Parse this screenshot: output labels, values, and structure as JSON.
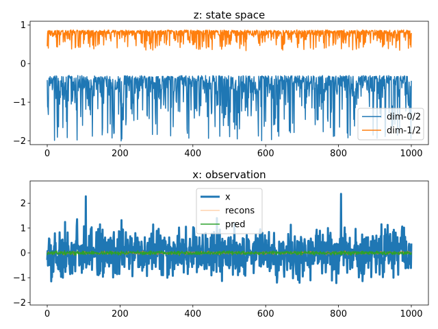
{
  "chart_data": [
    {
      "type": "line",
      "title": "z: state space",
      "xlim": [
        -47,
        1047
      ],
      "ylim": [
        -2.1,
        1.1
      ],
      "xticks": [
        0,
        200,
        400,
        600,
        800,
        1000
      ],
      "yticks": [
        -2,
        -1,
        0,
        1
      ],
      "legend": "lower right",
      "series": [
        {
          "name": "dim-0/2",
          "color": "#1f77b4",
          "linewidth": 1.5,
          "signal": {
            "base": -0.32,
            "low": -2.0,
            "mode": "spiky-down",
            "seed": 11
          }
        },
        {
          "name": "dim-1/2",
          "color": "#ff7f0e",
          "linewidth": 1.5,
          "signal": {
            "base": 0.86,
            "low": 0.35,
            "mode": "spiky-down",
            "seed": 29
          }
        }
      ]
    },
    {
      "type": "line",
      "title": "x: observation",
      "xlim": [
        -47,
        1047
      ],
      "ylim": [
        -2.1,
        2.9
      ],
      "xticks": [
        0,
        200,
        400,
        600,
        800,
        1000
      ],
      "yticks": [
        -2,
        -1,
        0,
        1,
        2
      ],
      "legend": "upper center",
      "series": [
        {
          "name": "x",
          "color": "#1f77b4",
          "linewidth": 3,
          "signal": {
            "center": 0.0,
            "amp": 0.55,
            "max": 2.7,
            "min": -1.9,
            "mode": "noise",
            "seed": 5
          }
        },
        {
          "name": "recons",
          "color": "#ff7f0e",
          "linewidth": 0.6,
          "signal": {
            "center": 0.0,
            "amp": 0.04,
            "mode": "noise",
            "seed": 7
          }
        },
        {
          "name": "pred",
          "color": "#2ca02c",
          "linewidth": 1.5,
          "signal": {
            "center": 0.0,
            "amp": 0.04,
            "mode": "noise",
            "seed": 13
          }
        }
      ]
    }
  ]
}
